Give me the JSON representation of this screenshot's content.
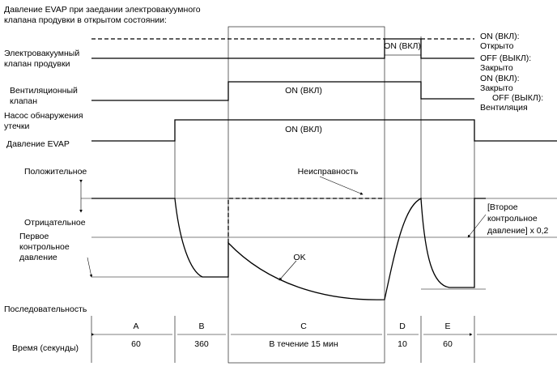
{
  "title": [
    "Давление EVAP при заедании электровакуумного",
    "клапана продувки в открытом состоянии:"
  ],
  "signals": {
    "purge_valve": [
      "Электровакуумный",
      "клапан продувки"
    ],
    "vent_valve": [
      "Вентиляционный",
      "клапан"
    ],
    "leak_pump": [
      "Насос обнаружения",
      "утечки"
    ],
    "evap_pressure": "Давление EVAP"
  },
  "pressure_axis": {
    "positive": "Положительное",
    "negative": "Отрицательное",
    "first_reference": [
      "Первое",
      "контрольное",
      "давление"
    ],
    "sequence": "Последовательность",
    "time": "Время (секунды)"
  },
  "right_labels": {
    "purge_on": [
      "ON (ВКЛ):",
      "Открыто"
    ],
    "purge_off": [
      "OFF (ВЫКЛ):",
      "Закрыто"
    ],
    "vent_on": [
      "ON (ВКЛ):",
      "Закрыто"
    ],
    "vent_off": [
      "OFF (ВЫКЛ):",
      "Вентиляция"
    ],
    "second_reference": [
      "[Второе",
      "контрольное",
      "давление] x 0,2"
    ]
  },
  "inline_labels": {
    "purge_on": "ON (ВКЛ)",
    "vent_on": "ON (ВКЛ)",
    "pump_on": "ON (ВКЛ)",
    "malfunction": "Неисправность",
    "ok": "OK"
  },
  "phases": [
    {
      "name": "A",
      "time": "60"
    },
    {
      "name": "B",
      "time": "360"
    },
    {
      "name": "C",
      "time": "В течение 15 мин"
    },
    {
      "name": "D",
      "time": "10"
    },
    {
      "name": "E",
      "time": "60"
    }
  ]
}
